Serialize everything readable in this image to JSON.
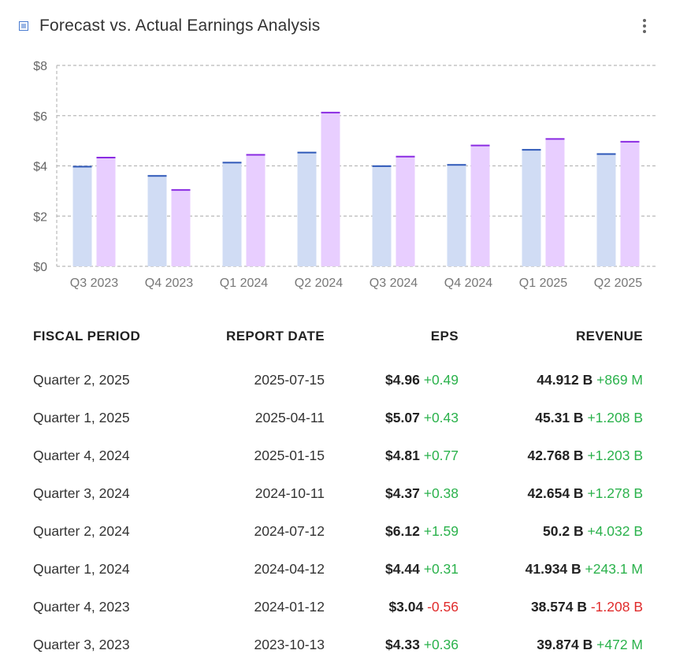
{
  "header": {
    "title": "Forecast vs. Actual Earnings Analysis",
    "logo_icon": "chart-square-icon",
    "menu_icon": "more-vertical-icon"
  },
  "colors": {
    "forecast_fill": "#d0dcf4",
    "forecast_line": "#2e58b8",
    "actual_fill": "#e8ceff",
    "actual_line": "#8a2be2",
    "positive": "#2bb24c",
    "negative": "#e02b2b"
  },
  "chart_data": {
    "type": "bar",
    "categories": [
      "Q3 2023",
      "Q4 2023",
      "Q1 2024",
      "Q2 2024",
      "Q3 2024",
      "Q4 2024",
      "Q1 2025",
      "Q2 2025"
    ],
    "series": [
      {
        "values": [
          3.97,
          3.6,
          4.13,
          4.53,
          3.99,
          4.04,
          4.64,
          4.47
        ]
      },
      {
        "values": [
          4.33,
          3.04,
          4.44,
          6.12,
          4.37,
          4.81,
          5.07,
          4.96
        ]
      }
    ],
    "y_ticks": [
      "$0",
      "$2",
      "$4",
      "$6",
      "$8"
    ],
    "ylim": [
      0,
      8
    ],
    "grid": true
  },
  "table": {
    "headers": {
      "period": "FISCAL PERIOD",
      "date": "REPORT DATE",
      "eps": "EPS",
      "revenue": "REVENUE"
    },
    "rows": [
      {
        "period": "Quarter 2, 2025",
        "date": "2025-07-15",
        "eps": "$4.96",
        "eps_diff": "+0.49",
        "revenue": "44.912 B",
        "rev_diff": "+869 M"
      },
      {
        "period": "Quarter 1, 2025",
        "date": "2025-04-11",
        "eps": "$5.07",
        "eps_diff": "+0.43",
        "revenue": "45.31 B",
        "rev_diff": "+1.208 B"
      },
      {
        "period": "Quarter 4, 2024",
        "date": "2025-01-15",
        "eps": "$4.81",
        "eps_diff": "+0.77",
        "revenue": "42.768 B",
        "rev_diff": "+1.203 B"
      },
      {
        "period": "Quarter 3, 2024",
        "date": "2024-10-11",
        "eps": "$4.37",
        "eps_diff": "+0.38",
        "revenue": "42.654 B",
        "rev_diff": "+1.278 B"
      },
      {
        "period": "Quarter 2, 2024",
        "date": "2024-07-12",
        "eps": "$6.12",
        "eps_diff": "+1.59",
        "revenue": "50.2 B",
        "rev_diff": "+4.032 B"
      },
      {
        "period": "Quarter 1, 2024",
        "date": "2024-04-12",
        "eps": "$4.44",
        "eps_diff": "+0.31",
        "revenue": "41.934 B",
        "rev_diff": "+243.1 M"
      },
      {
        "period": "Quarter 4, 2023",
        "date": "2024-01-12",
        "eps": "$3.04",
        "eps_diff": "-0.56",
        "revenue": "38.574 B",
        "rev_diff": "-1.208 B"
      },
      {
        "period": "Quarter 3, 2023",
        "date": "2023-10-13",
        "eps": "$4.33",
        "eps_diff": "+0.36",
        "revenue": "39.874 B",
        "rev_diff": "+472 M"
      }
    ]
  }
}
